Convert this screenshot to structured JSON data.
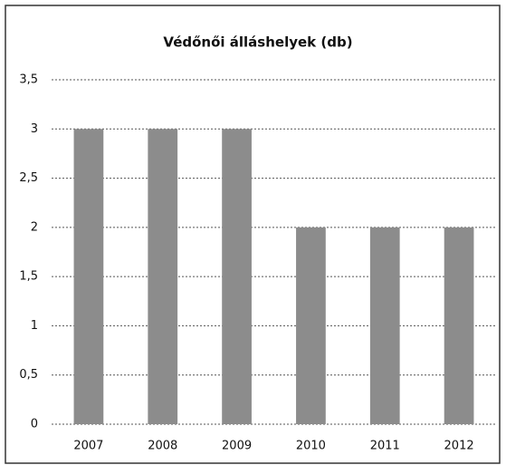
{
  "chart_data": {
    "type": "bar",
    "title": "Védőnői álláshelyek (db)",
    "categories": [
      "2007",
      "2008",
      "2009",
      "2010",
      "2011",
      "2012"
    ],
    "values": [
      3,
      3,
      3,
      2,
      2,
      2
    ],
    "color": "#8c8c8c",
    "ylim": [
      0,
      3.5
    ],
    "yticks": [
      0,
      {
        "value": 0.5,
        "label": "0,5"
      },
      1,
      {
        "value": 1.5,
        "label": "1,5"
      },
      2,
      {
        "value": 2.5,
        "label": "2,5"
      },
      3,
      {
        "value": 3.5,
        "label": "3,5"
      }
    ],
    "grid": true
  }
}
